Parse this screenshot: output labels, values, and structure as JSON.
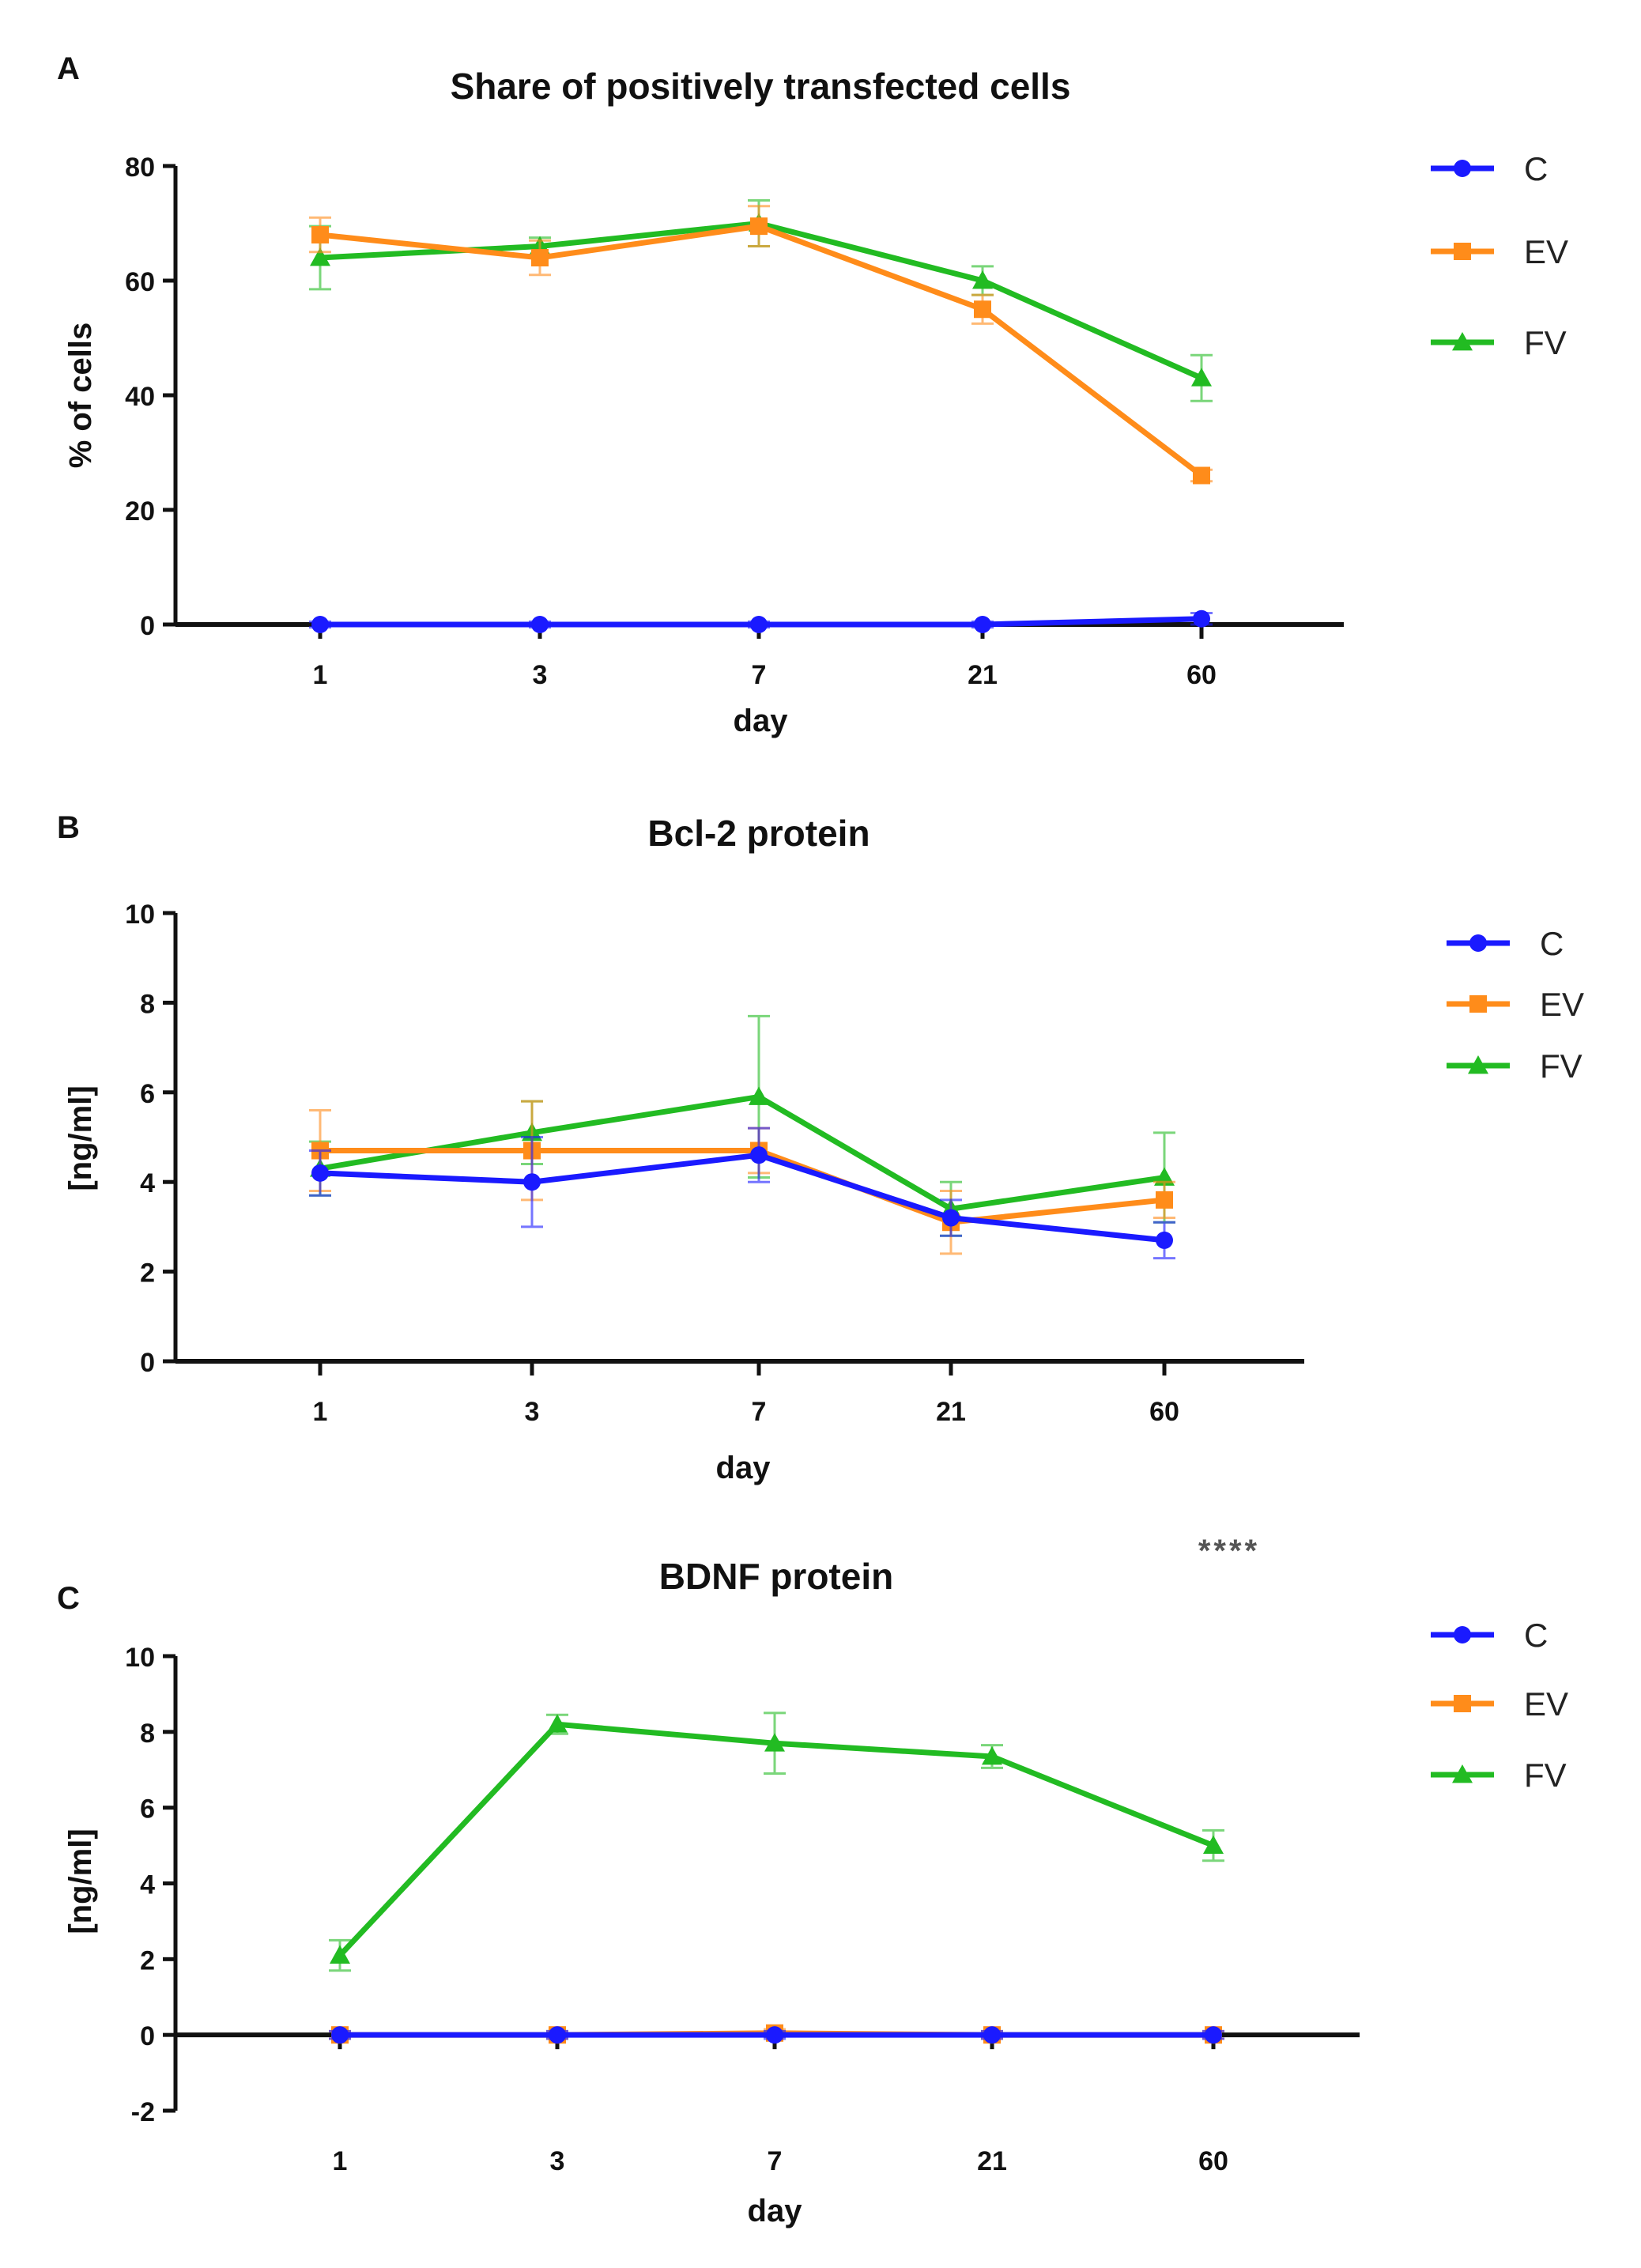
{
  "colors": {
    "C": "#1a1aff",
    "EV": "#ff8c1a",
    "FV": "#22bb22",
    "axis": "#111111"
  },
  "chart_data": [
    {
      "panel_label": "A",
      "type": "line",
      "title": "Share of positively transfected cells",
      "xlabel": "day",
      "ylabel": "% of cells",
      "categories": [
        "1",
        "3",
        "7",
        "21",
        "60"
      ],
      "ylim": [
        0,
        80
      ],
      "yticks": [
        "0",
        "20",
        "40",
        "60",
        "80"
      ],
      "legend_position": "right",
      "annotation": "",
      "series": [
        {
          "name": "C",
          "marker": "circle",
          "values": [
            0,
            0,
            0,
            0,
            1
          ],
          "errors": [
            0.5,
            0.5,
            0.5,
            0.5,
            1
          ]
        },
        {
          "name": "EV",
          "marker": "square",
          "values": [
            68,
            64,
            69.5,
            55,
            26
          ],
          "errors": [
            3,
            3,
            3.5,
            2.5,
            1
          ]
        },
        {
          "name": "FV",
          "marker": "triangle",
          "values": [
            64,
            66,
            70,
            60,
            43
          ],
          "errors": [
            5.5,
            1.5,
            4,
            2.5,
            4
          ]
        }
      ]
    },
    {
      "panel_label": "B",
      "type": "line",
      "title": "Bcl-2 protein",
      "xlabel": "day",
      "ylabel": "[ng/ml]",
      "categories": [
        "1",
        "3",
        "7",
        "21",
        "60"
      ],
      "ylim": [
        0,
        10
      ],
      "yticks": [
        "0",
        "2",
        "4",
        "6",
        "8",
        "10"
      ],
      "legend_position": "right",
      "annotation": "",
      "series": [
        {
          "name": "C",
          "marker": "circle",
          "values": [
            4.2,
            4.0,
            4.6,
            3.2,
            2.7
          ],
          "errors": [
            0.5,
            1.0,
            0.6,
            0.4,
            0.4
          ]
        },
        {
          "name": "EV",
          "marker": "square",
          "values": [
            4.7,
            4.7,
            4.7,
            3.1,
            3.6
          ],
          "errors": [
            0.9,
            1.1,
            0.5,
            0.7,
            0.4
          ]
        },
        {
          "name": "FV",
          "marker": "triangle",
          "values": [
            4.3,
            5.1,
            5.9,
            3.4,
            4.1
          ],
          "errors": [
            0.6,
            0.7,
            1.8,
            0.6,
            1.0
          ]
        }
      ]
    },
    {
      "panel_label": "C",
      "type": "line",
      "title": "BDNF protein",
      "xlabel": "day",
      "ylabel": "[ng/ml]",
      "categories": [
        "1",
        "3",
        "7",
        "21",
        "60"
      ],
      "ylim": [
        -2,
        10
      ],
      "yticks": [
        "-2",
        "0",
        "2",
        "4",
        "6",
        "8",
        "10"
      ],
      "legend_position": "right",
      "annotation": "****",
      "series": [
        {
          "name": "C",
          "marker": "circle",
          "values": [
            0,
            0,
            0,
            0,
            0
          ],
          "errors": [
            0.1,
            0.1,
            0.1,
            0.1,
            0.1
          ]
        },
        {
          "name": "EV",
          "marker": "square",
          "values": [
            0,
            0,
            0.05,
            0,
            0
          ],
          "errors": [
            0.1,
            0.1,
            0.1,
            0.1,
            0.1
          ]
        },
        {
          "name": "FV",
          "marker": "triangle",
          "values": [
            2.1,
            8.2,
            7.7,
            7.35,
            5.0
          ],
          "errors": [
            0.4,
            0.25,
            0.8,
            0.3,
            0.4
          ]
        }
      ]
    }
  ]
}
